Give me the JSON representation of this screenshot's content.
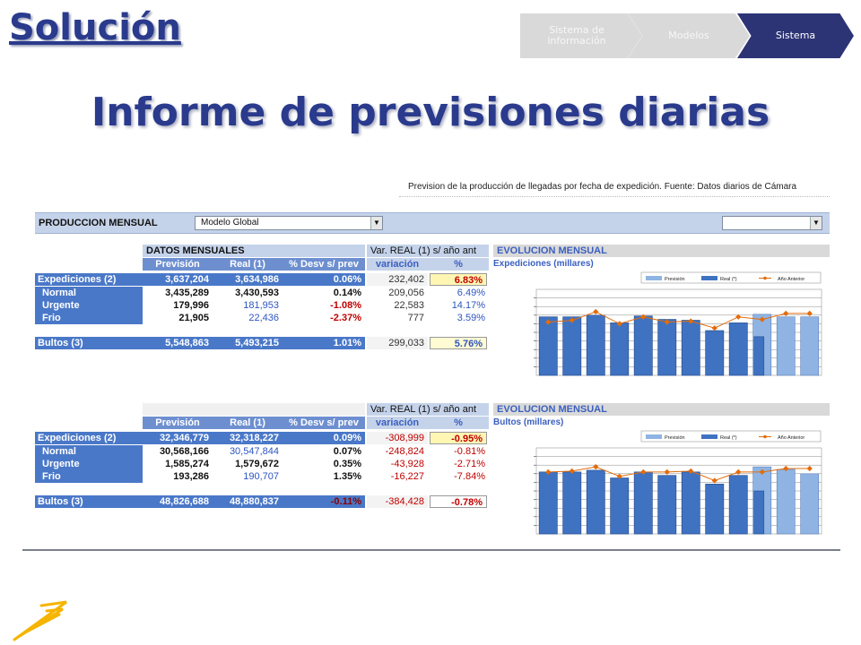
{
  "slide": {
    "title": "Solución",
    "heading": "Informe de previsiones diarias",
    "breadcrumb": [
      "Sistema de información",
      "Modelos",
      "Sistema"
    ],
    "active_crumb": "Sistema"
  },
  "report": {
    "subtitle": "Prevision de la producción de llegadas por fecha de expedición. Fuente: Datos diarios de Cámara",
    "filter": {
      "label": "PRODUCCION MENSUAL",
      "model_value": "Modelo Global",
      "second_value": ""
    },
    "table1": {
      "title": "DATOS MENSUALES",
      "var_header": "Var. REAL (1) s/ año ant",
      "col_headers": [
        "Previsión",
        "Real (1)",
        "% Desv s/ prev",
        "variación",
        "%"
      ],
      "rows": [
        {
          "label": "Expediciones (2)",
          "prev": "3,637,204",
          "real": "3,634,986",
          "desv": "0.06%",
          "var": "232,402",
          "pct": "6.83%"
        },
        {
          "label": "Normal",
          "prev": "3,435,289",
          "real": "3,430,593",
          "desv": "0.14%",
          "var": "209,056",
          "pct": "6.49%"
        },
        {
          "label": "Urgente",
          "prev": "179,996",
          "real": "181,953",
          "desv": "-1.08%",
          "var": "22,583",
          "pct": "14.17%"
        },
        {
          "label": "Frio",
          "prev": "21,905",
          "real": "22,436",
          "desv": "-2.37%",
          "var": "777",
          "pct": "3.59%"
        }
      ],
      "bultos": {
        "label": "Bultos (3)",
        "prev": "5,548,863",
        "real": "5,493,215",
        "desv": "1.01%",
        "var": "299,033",
        "pct": "5.76%"
      }
    },
    "table2": {
      "title": "",
      "var_header": "Var. REAL (1) s/ año ant",
      "col_headers": [
        "Previsión",
        "Real (1)",
        "% Desv s/ prev",
        "variación",
        "%"
      ],
      "rows": [
        {
          "label": "Expediciones (2)",
          "prev": "32,346,779",
          "real": "32,318,227",
          "desv": "0.09%",
          "var": "-308,999",
          "pct": "-0.95%"
        },
        {
          "label": "Normal",
          "prev": "30,568,166",
          "real": "30,547,844",
          "desv": "0.07%",
          "var": "-248,824",
          "pct": "-0.81%"
        },
        {
          "label": "Urgente",
          "prev": "1,585,274",
          "real": "1,579,672",
          "desv": "0.35%",
          "var": "-43,928",
          "pct": "-2.71%"
        },
        {
          "label": "Frio",
          "prev": "193,286",
          "real": "190,707",
          "desv": "1.35%",
          "var": "-16,227",
          "pct": "-7.84%"
        }
      ],
      "bultos": {
        "label": "Bultos (3)",
        "prev": "48,826,688",
        "real": "48,880,837",
        "desv": "-0.11%",
        "var": "-384,428",
        "pct": "-0.78%"
      }
    },
    "charts": [
      {
        "title": "EVOLUCION MENSUAL",
        "subtitle": "Expediciones (millares)"
      },
      {
        "title": "EVOLUCION MENSUAL",
        "subtitle": "Bultos (millares)"
      }
    ]
  },
  "chart_data": [
    {
      "type": "bar",
      "title": "EVOLUCION MENSUAL",
      "subtitle": "Expediciones (millares)",
      "legend": [
        "Previsión",
        "Real (*)",
        "Año Anterior"
      ],
      "legend_position": "top-right",
      "grid": true,
      "ylim": [
        0,
        1
      ],
      "series": [
        {
          "name": "Previsión",
          "values": [
            0.68,
            0.68,
            0.7,
            0.61,
            0.69,
            0.65,
            0.64,
            0.52,
            0.61,
            0.71,
            0.68,
            0.68
          ]
        },
        {
          "name": "Real (*)",
          "values": [
            0.68,
            0.68,
            0.7,
            0.61,
            0.69,
            0.65,
            0.64,
            0.52,
            0.61,
            0.45,
            0,
            0
          ]
        },
        {
          "name": "Año Anterior",
          "values": [
            0.62,
            0.64,
            0.74,
            0.6,
            0.68,
            0.62,
            0.63,
            0.55,
            0.68,
            0.65,
            0.72,
            0.72
          ]
        }
      ]
    },
    {
      "type": "bar",
      "title": "EVOLUCION MENSUAL",
      "subtitle": "Bultos (millares)",
      "legend": [
        "Previsión",
        "Real (*)",
        "Año Anterior"
      ],
      "legend_position": "top-right",
      "grid": true,
      "ylim": [
        0,
        1
      ],
      "series": [
        {
          "name": "Previsión",
          "values": [
            0.72,
            0.72,
            0.74,
            0.65,
            0.72,
            0.68,
            0.72,
            0.58,
            0.68,
            0.78,
            0.75,
            0.7
          ]
        },
        {
          "name": "Real (*)",
          "values": [
            0.72,
            0.72,
            0.74,
            0.65,
            0.72,
            0.68,
            0.72,
            0.58,
            0.68,
            0.5,
            0,
            0
          ]
        },
        {
          "name": "Año Anterior",
          "values": [
            0.72,
            0.73,
            0.78,
            0.67,
            0.72,
            0.72,
            0.73,
            0.62,
            0.72,
            0.72,
            0.76,
            0.76
          ]
        }
      ]
    }
  ]
}
